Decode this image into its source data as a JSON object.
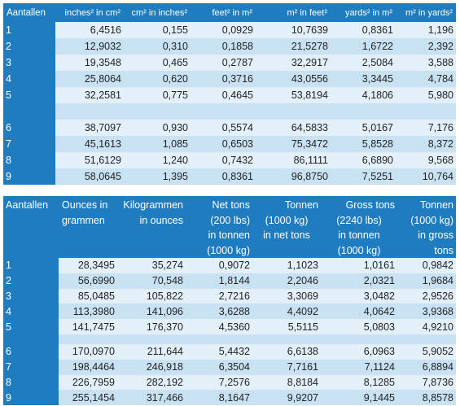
{
  "table1": {
    "headers": [
      "Aantallen",
      "inches² in cm²",
      "cm² in inches²",
      "feet² in m²",
      "m² in feet²",
      "yards² in m²",
      "m² in yards²"
    ],
    "group1": [
      [
        "1",
        "6,4516",
        "0,155",
        "0,0929",
        "10,7639",
        "0,8361",
        "1,196"
      ],
      [
        "2",
        "12,9032",
        "0,310",
        "0,1858",
        "21,5278",
        "1,6722",
        "2,392"
      ],
      [
        "3",
        "19,3548",
        "0,465",
        "0,2787",
        "32,2917",
        "2,5084",
        "3,588"
      ],
      [
        "4",
        "25,8064",
        "0,620",
        "0,3716",
        "43,0556",
        "3,3445",
        "4,784"
      ],
      [
        "5",
        "32,2581",
        "0,775",
        "0,4645",
        "53,8194",
        "4,1806",
        "5,980"
      ]
    ],
    "group2": [
      [
        "6",
        "38,7097",
        "0,930",
        "0,5574",
        "64,5833",
        "5,0167",
        "7,176"
      ],
      [
        "7",
        "45,1613",
        "1,085",
        "0,6503",
        "75,3472",
        "5,8528",
        "8,372"
      ],
      [
        "8",
        "51,6129",
        "1,240",
        "0,7432",
        "86,1111",
        "6,6890",
        "9,568"
      ],
      [
        "9",
        "58,0645",
        "1,395",
        "0,8361",
        "96,8750",
        "7,5251",
        "10,764"
      ]
    ]
  },
  "table2": {
    "headers": [
      [
        "Aantallen"
      ],
      [
        "Ounces in",
        "grammen"
      ],
      [
        "Kilogrammen",
        "in ounces"
      ],
      [
        "Net tons",
        "(200 lbs)",
        "in tonnen",
        "(1000 kg)"
      ],
      [
        "Tonnen",
        "(1000 kg)",
        "in net tons"
      ],
      [
        "Gross tons",
        "(2240 lbs)",
        "in tonnen",
        "(1000 kg)"
      ],
      [
        "Tonnen",
        "(1000 kg)",
        "in gross",
        "tons"
      ]
    ],
    "group1": [
      [
        "1",
        "28,3495",
        "35,274",
        "0,9072",
        "1,1023",
        "1,0161",
        "0,9842"
      ],
      [
        "2",
        "56,6990",
        "70,548",
        "1,8144",
        "2,2046",
        "2,0321",
        "1,9684"
      ],
      [
        "3",
        "85,0485",
        "105,822",
        "2,7216",
        "3,3069",
        "3,0482",
        "2,9526"
      ],
      [
        "4",
        "113,3980",
        "141,096",
        "3,6288",
        "4,4092",
        "4,0642",
        "3,9368"
      ],
      [
        "5",
        "141,7475",
        "176,370",
        "4,5360",
        "5,5115",
        "5,0803",
        "4,9210"
      ]
    ],
    "group2": [
      [
        "6",
        "170,0970",
        "211,644",
        "5,4432",
        "6,6138",
        "6,0963",
        "5,9052"
      ],
      [
        "7",
        "198,4464",
        "246,918",
        "6,3504",
        "7,7161",
        "7,1124",
        "6,8894"
      ],
      [
        "8",
        "226,7959",
        "282,192",
        "7,2576",
        "8,8184",
        "8,1285",
        "7,8736"
      ],
      [
        "9",
        "255,1454",
        "317,466",
        "8,1647",
        "9,9207",
        "9,1445",
        "8,8578"
      ]
    ]
  },
  "colors": {
    "header_blue": "#1f7dbf",
    "row_light": "#e3f0fa",
    "row_dark": "#c9e2f3"
  }
}
